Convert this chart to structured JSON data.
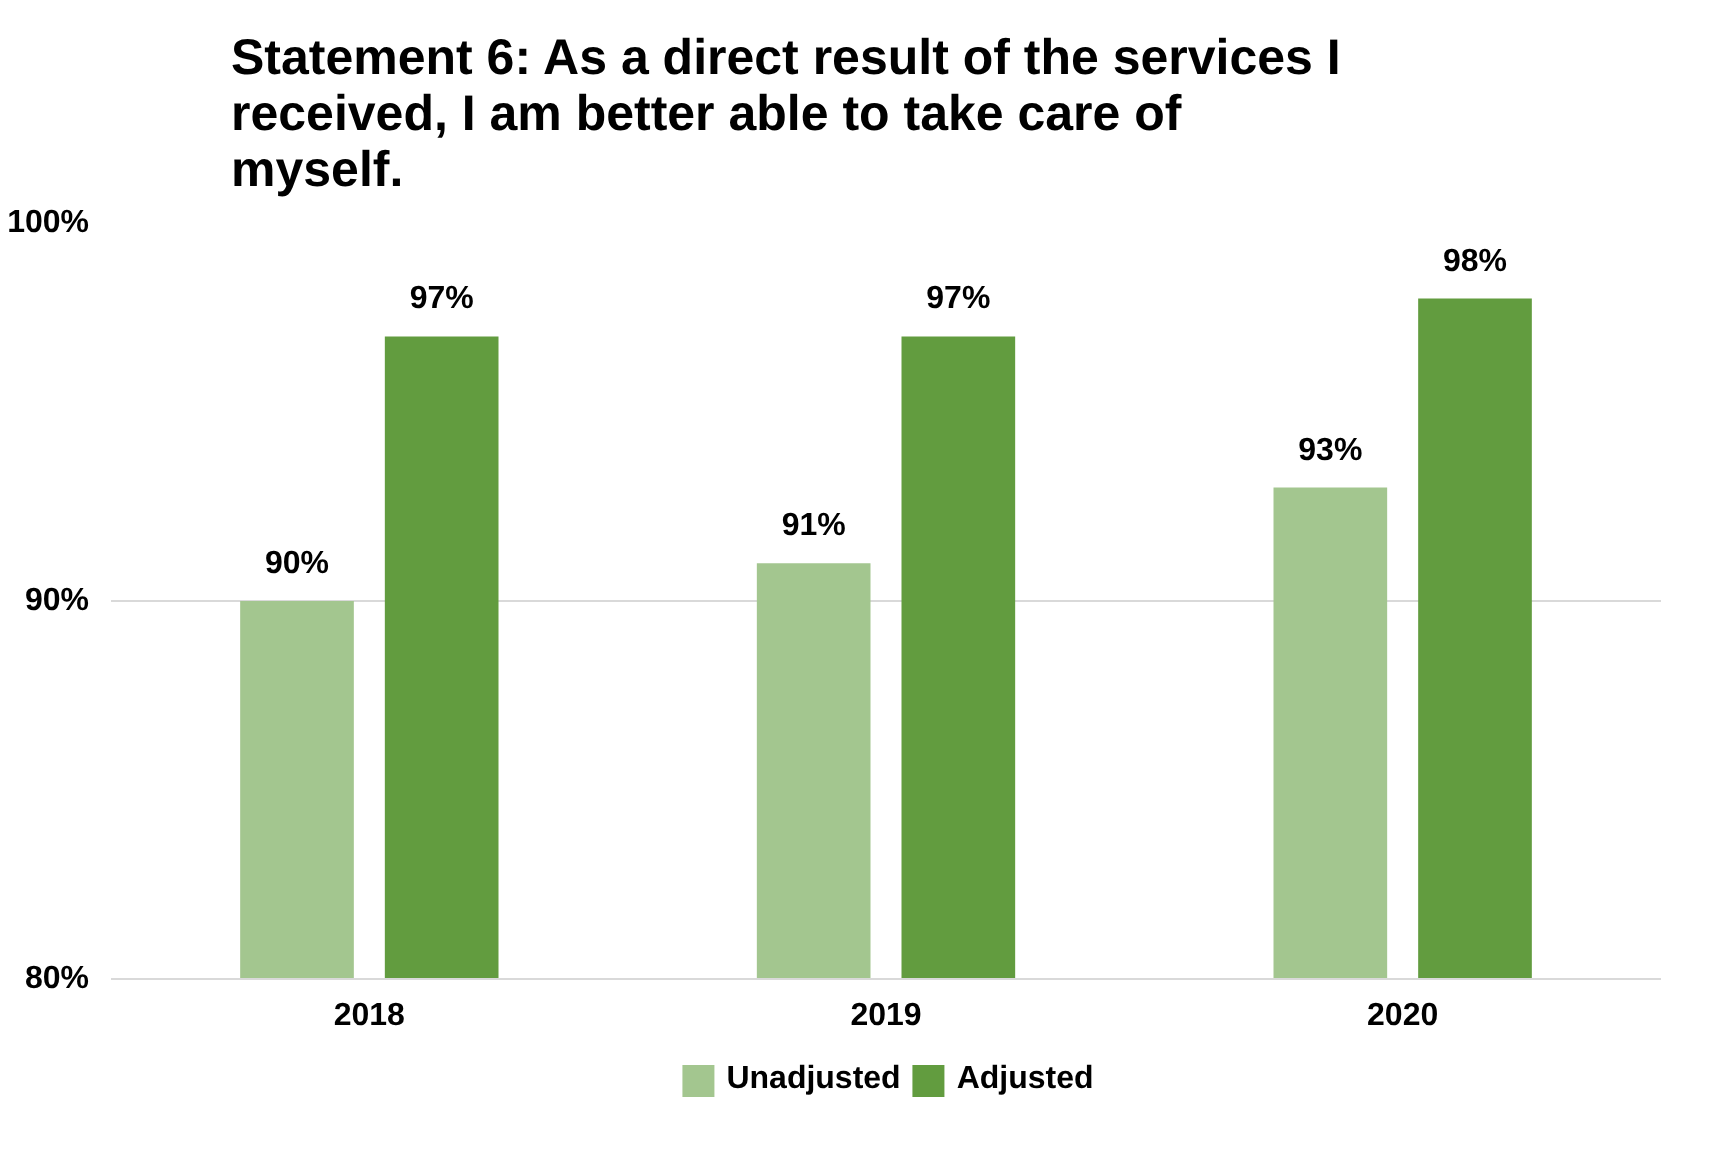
{
  "chart_data": {
    "type": "bar",
    "title": "Statement 6: As a direct result of the services I received, I am better able to take care of myself.",
    "categories": [
      "2018",
      "2019",
      "2020"
    ],
    "series": [
      {
        "name": "Unadjusted",
        "color": "#a3c68f",
        "values": [
          90,
          91,
          93
        ],
        "value_labels": [
          "90%",
          "91%",
          "93%"
        ]
      },
      {
        "name": "Adjusted",
        "color": "#629c3f",
        "values": [
          97,
          97,
          98
        ],
        "value_labels": [
          "97%",
          "97%",
          "98%"
        ]
      }
    ],
    "ylim": [
      80,
      100
    ],
    "yticks": [
      {
        "value": 80,
        "label": "80%"
      },
      {
        "value": 90,
        "label": "90%"
      },
      {
        "value": 100,
        "label": "100%"
      }
    ],
    "grid": "y",
    "legend": "bottom"
  }
}
